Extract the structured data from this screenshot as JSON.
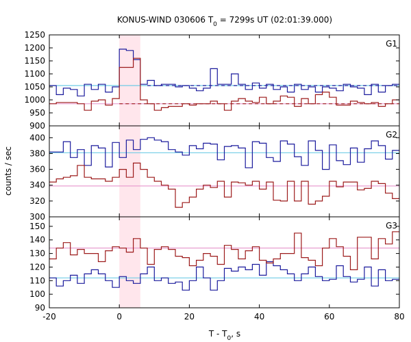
{
  "chart_data": {
    "type": "line",
    "title": "KONUS-WIND 030606 T",
    "title_sub": "0",
    "title_rest": " = 7299s UT (02:01:39.000)",
    "xlabel": "T - T",
    "xlabel_sub": "0",
    "xlabel_rest": ", s",
    "ylabel": "counts / sec",
    "xlim": [
      -20,
      80
    ],
    "x_ticks": [
      -20,
      0,
      20,
      40,
      60,
      80
    ],
    "highlight_interval": [
      0,
      6
    ],
    "colors": {
      "blue": "#1a1a9c",
      "red": "#9c1a1a",
      "cyan": "#6ecbe6",
      "pink": "#e89ed0",
      "highlight": "#ffe6ec"
    },
    "bin_edges": [
      -20,
      -18,
      -16,
      -14,
      -12,
      -10,
      -8,
      -6,
      -4,
      -2,
      0,
      2,
      4,
      6,
      8,
      10,
      12,
      14,
      16,
      18,
      20,
      22,
      24,
      26,
      28,
      30,
      32,
      34,
      36,
      38,
      40,
      42,
      44,
      46,
      48,
      50,
      52,
      54,
      56,
      58,
      60,
      62,
      64,
      66,
      68,
      70,
      72,
      74,
      76,
      78,
      80
    ],
    "panels": [
      {
        "label": "G1",
        "ylim": [
          900,
          1250
        ],
        "y_ticks": [
          900,
          950,
          1000,
          1050,
          1100,
          1150,
          1200,
          1250
        ],
        "background_blue": 1055,
        "background_red": 985,
        "bg_blue_dashed_from": 8,
        "bg_red_dashed_from": 0,
        "series_blue": [
          1055,
          1020,
          1045,
          1040,
          1015,
          1060,
          1040,
          1060,
          1030,
          1050,
          1195,
          1190,
          1155,
          1060,
          1075,
          1055,
          1060,
          1060,
          1050,
          1055,
          1045,
          1035,
          1045,
          1120,
          1060,
          1060,
          1100,
          1060,
          1040,
          1065,
          1045,
          1060,
          1040,
          1050,
          1030,
          1060,
          1040,
          1050,
          1030,
          1050,
          1045,
          1035,
          1060,
          1050,
          1045,
          1020,
          1060,
          1030,
          1055,
          1060
        ],
        "series_red": [
          985,
          990,
          990,
          990,
          985,
          960,
          995,
          1000,
          980,
          1005,
          1125,
          1125,
          1160,
          1000,
          985,
          960,
          970,
          975,
          975,
          985,
          980,
          985,
          985,
          995,
          985,
          960,
          995,
          1005,
          995,
          990,
          1010,
          985,
          995,
          1015,
          1010,
          975,
          1005,
          985,
          1020,
          1030,
          1010,
          980,
          980,
          995,
          990,
          985,
          990,
          975,
          985,
          1000
        ]
      },
      {
        "label": "G2",
        "ylim": [
          300,
          415
        ],
        "y_ticks": [
          300,
          320,
          340,
          360,
          380,
          400
        ],
        "background_blue": 381,
        "background_red": 339,
        "series_blue": [
          382,
          382,
          395,
          375,
          385,
          365,
          390,
          387,
          363,
          394,
          375,
          397,
          385,
          398,
          400,
          397,
          395,
          385,
          382,
          378,
          390,
          386,
          393,
          392,
          372,
          389,
          390,
          387,
          362,
          395,
          393,
          375,
          370,
          396,
          392,
          376,
          365,
          396,
          384,
          360,
          391,
          371,
          366,
          387,
          369,
          386,
          396,
          390,
          373,
          384
        ],
        "series_red": [
          344,
          348,
          350,
          352,
          365,
          350,
          348,
          348,
          345,
          350,
          360,
          350,
          368,
          360,
          350,
          345,
          340,
          335,
          312,
          318,
          325,
          335,
          340,
          337,
          345,
          325,
          344,
          343,
          340,
          345,
          335,
          344,
          321,
          320,
          345,
          320,
          345,
          316,
          320,
          326,
          345,
          338,
          344,
          344,
          334,
          336,
          345,
          342,
          330,
          323
        ]
      },
      {
        "label": "G3",
        "ylim": [
          90,
          157
        ],
        "y_ticks": [
          90,
          100,
          110,
          120,
          130,
          140,
          150
        ],
        "background_blue": 112,
        "background_red": 134,
        "series_blue": [
          112,
          106,
          110,
          114,
          108,
          115,
          118,
          115,
          110,
          105,
          113,
          110,
          108,
          115,
          120,
          110,
          112,
          108,
          109,
          103,
          110,
          120,
          112,
          103,
          110,
          119,
          117,
          120,
          118,
          122,
          114,
          124,
          121,
          118,
          115,
          110,
          115,
          120,
          113,
          110,
          111,
          121,
          113,
          109,
          111,
          120,
          106,
          118,
          110,
          111
        ],
        "series_red": [
          126,
          134,
          138,
          129,
          133,
          130,
          130,
          124,
          132,
          135,
          134,
          131,
          141,
          134,
          122,
          133,
          135,
          133,
          128,
          127,
          121,
          125,
          130,
          128,
          122,
          136,
          133,
          126,
          132,
          135,
          125,
          123,
          126,
          130,
          130,
          145,
          127,
          125,
          121,
          134,
          141,
          135,
          128,
          118,
          142,
          142,
          126,
          141,
          137,
          146
        ]
      }
    ]
  }
}
